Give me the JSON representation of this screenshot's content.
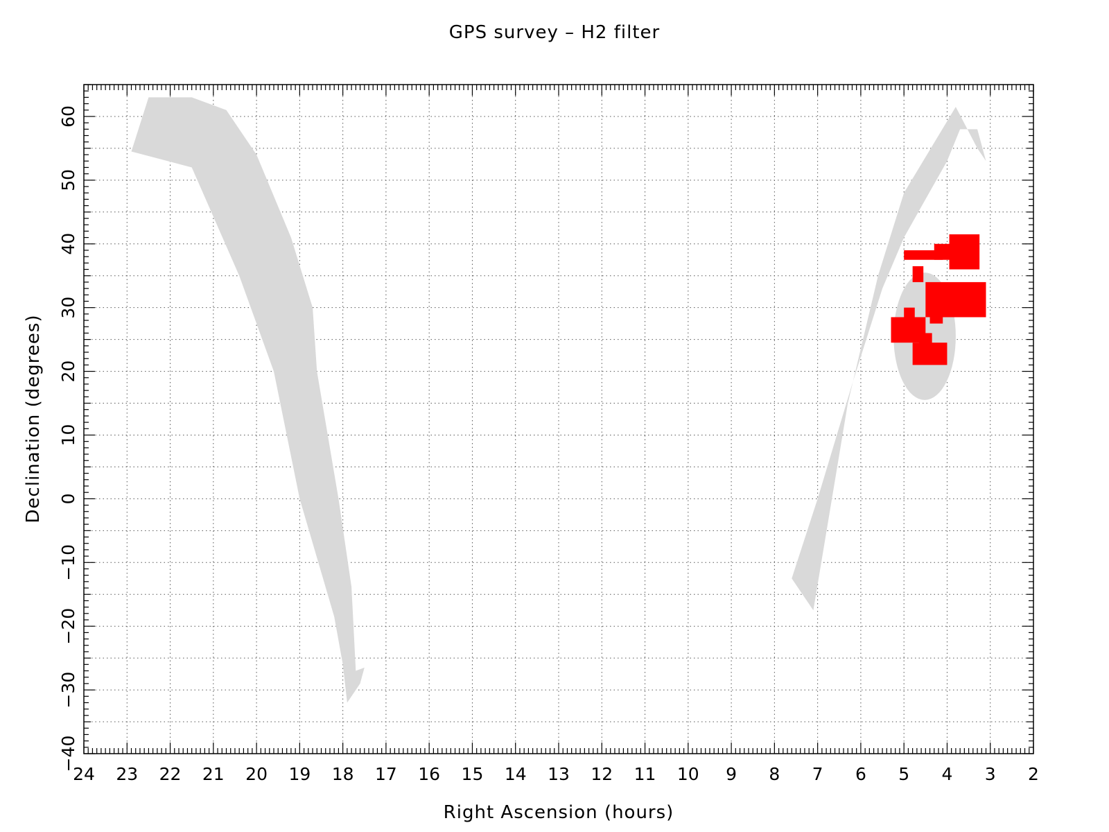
{
  "chart_data": {
    "type": "scatter",
    "title": "GPS survey – H2 filter",
    "xlabel": "Right Ascension (hours)",
    "ylabel": "Declination (degrees)",
    "xlim": [
      24,
      2
    ],
    "ylim": [
      -40,
      65
    ],
    "x_reversed": true,
    "x_ticks": [
      24,
      23,
      22,
      21,
      20,
      19,
      18,
      17,
      16,
      15,
      14,
      13,
      12,
      11,
      10,
      9,
      8,
      7,
      6,
      5,
      4,
      3,
      2
    ],
    "y_ticks": [
      -40,
      -30,
      -20,
      -10,
      0,
      10,
      20,
      30,
      40,
      50,
      60
    ],
    "grid": true,
    "colors": {
      "coverage_band": "#d9d9d9",
      "observed_fields": "#ff0000",
      "axis": "#000000",
      "grid": "#555555"
    },
    "background_regions": [
      {
        "ra": [
          22.5,
          22.9,
          21.5,
          20.4,
          19.6,
          19.0,
          18.2,
          18.0,
          17.9,
          17.6,
          17.5,
          17.7,
          17.8,
          18.1,
          18.6,
          18.7,
          19.2,
          20.0,
          20.7,
          21.5,
          22.1,
          22.5
        ],
        "dec": [
          63.0,
          54.5,
          52.0,
          35.0,
          20.0,
          0.0,
          -18.5,
          -26.0,
          -32.0,
          -29.0,
          -26.5,
          -27.0,
          -13.8,
          0.0,
          20.0,
          30.0,
          41.0,
          54.0,
          61.0,
          63.0,
          63.0,
          63.0
        ]
      },
      {
        "ra": [
          3.1,
          3.3,
          3.8,
          5.0,
          5.6,
          6.3,
          7.1,
          7.6,
          7.0,
          6.2,
          5.5,
          5.0,
          4.5,
          4.0,
          3.7,
          3.3,
          3.1
        ],
        "dec": [
          53.0,
          55.0,
          61.5,
          48.0,
          35.0,
          15.0,
          -17.5,
          -12.5,
          0.0,
          18.0,
          33.0,
          41.0,
          47.0,
          53.0,
          58.0,
          58.0,
          53.0
        ]
      },
      {
        "type": "ellipse",
        "ra_center": 4.52,
        "dec_center": 25.5,
        "ra_radius": 0.72,
        "dec_radius": 10.0
      }
    ],
    "observed_fields": [
      {
        "ra": [
          3.95,
          3.25
        ],
        "dec": [
          41.5,
          36.0
        ]
      },
      {
        "ra": [
          4.3,
          3.9
        ],
        "dec": [
          40.0,
          37.5
        ]
      },
      {
        "ra": [
          5.0,
          4.1
        ],
        "dec": [
          39.0,
          37.5
        ]
      },
      {
        "ra": [
          4.8,
          4.55
        ],
        "dec": [
          36.5,
          34.0
        ]
      },
      {
        "ra": [
          4.5,
          3.1
        ],
        "dec": [
          34.0,
          28.5
        ]
      },
      {
        "ra": [
          3.45,
          3.1
        ],
        "dec": [
          33.0,
          28.5
        ]
      },
      {
        "ra": [
          4.1,
          3.25
        ],
        "dec": [
          31.5,
          28.5
        ]
      },
      {
        "ra": [
          4.4,
          4.1
        ],
        "dec": [
          30.0,
          27.5
        ]
      },
      {
        "ra": [
          5.3,
          4.5
        ],
        "dec": [
          28.5,
          24.5
        ]
      },
      {
        "ra": [
          4.8,
          4.0
        ],
        "dec": [
          24.5,
          21.0
        ]
      },
      {
        "ra": [
          4.65,
          4.35
        ],
        "dec": [
          26.0,
          24.0
        ]
      },
      {
        "ra": [
          5.0,
          4.75
        ],
        "dec": [
          30.0,
          28.0
        ]
      }
    ]
  }
}
